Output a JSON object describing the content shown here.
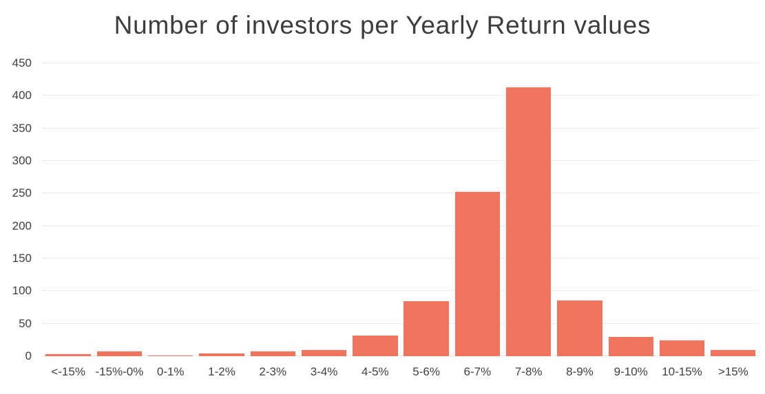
{
  "chart_data": {
    "type": "bar",
    "title": "Number of investors per Yearly Return values",
    "categories": [
      "<-15%",
      "-15%-0%",
      "0-1%",
      "1-2%",
      "2-3%",
      "3-4%",
      "4-5%",
      "5-6%",
      "6-7%",
      "7-8%",
      "8-9%",
      "9-10%",
      "10-15%",
      ">15%"
    ],
    "values": [
      3,
      7,
      1,
      4,
      7,
      10,
      32,
      84,
      252,
      413,
      86,
      30,
      24,
      10
    ],
    "xlabel": "",
    "ylabel": "",
    "ylim": [
      0,
      450
    ],
    "ytick_interval": 50,
    "grid": true,
    "legend": "none",
    "colors": {
      "bar": "#ef755f",
      "gridline": "#d6d6d6",
      "axis_text": "#404040",
      "title_text": "#3d3d3d",
      "background": "#ffffff"
    }
  }
}
